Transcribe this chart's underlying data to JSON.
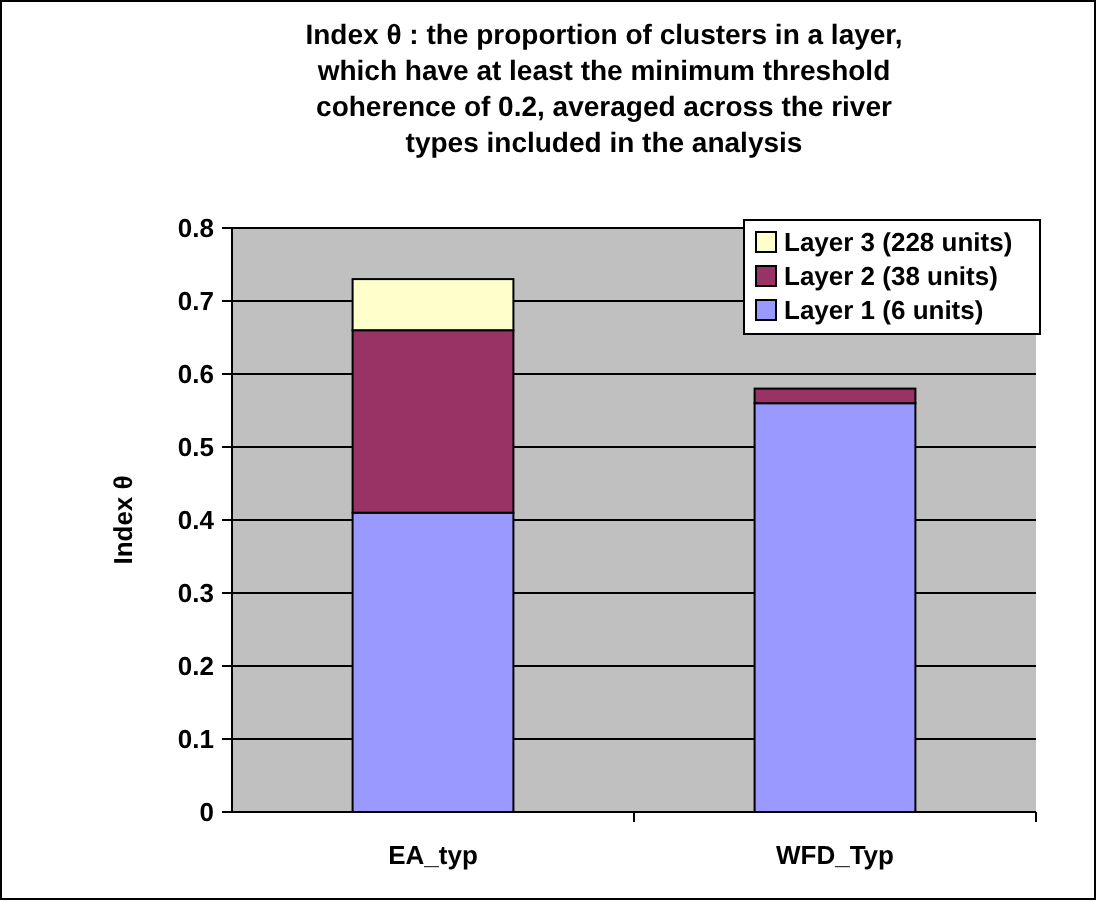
{
  "chart_data": {
    "type": "bar",
    "title": "Index θ : the proportion of clusters in a layer, which have at least the minimum threshold coherence of 0.2, averaged across the river types included in the analysis",
    "ylabel": "Index θ",
    "categories": [
      "EA_typ",
      "WFD_Typ"
    ],
    "stacked": true,
    "series": [
      {
        "name": "Layer 1 (6 units)",
        "color": "#9999ff",
        "values": [
          0.41,
          0.56
        ]
      },
      {
        "name": "Layer 2 (38 units)",
        "color": "#993366",
        "values": [
          0.25,
          0.02
        ]
      },
      {
        "name": "Layer 3 (228 units)",
        "color": "#ffffcc",
        "values": [
          0.07,
          0
        ]
      }
    ],
    "ylim": [
      0,
      0.8
    ],
    "yticks": [
      0,
      0.1,
      0.2,
      0.3,
      0.4,
      0.5,
      0.6,
      0.7,
      0.8
    ],
    "grid": "y",
    "legend": "top right"
  }
}
